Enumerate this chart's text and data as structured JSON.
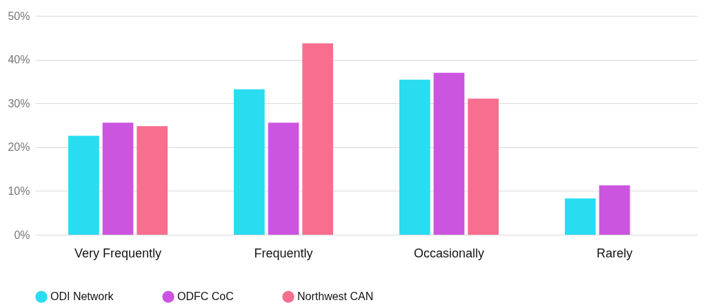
{
  "chart_data": {
    "type": "bar",
    "categories": [
      "Very Frequently",
      "Frequently",
      "Occasionally",
      "Rarely"
    ],
    "series": [
      {
        "name": "ODI Network",
        "color": "#2adcf0",
        "values": [
          22.6,
          33.2,
          35.4,
          8.3
        ]
      },
      {
        "name": "ODFC CoC",
        "color": "#cc55e0",
        "values": [
          25.6,
          25.6,
          37.0,
          11.3
        ]
      },
      {
        "name": "Northwest CAN",
        "color": "#f76e8f",
        "values": [
          24.8,
          43.7,
          31.1,
          null
        ]
      }
    ],
    "ylim": [
      0,
      50
    ],
    "yticks": [
      {
        "value": 0,
        "label": "0%"
      },
      {
        "value": 10,
        "label": "10%"
      },
      {
        "value": 20,
        "label": "20%"
      },
      {
        "value": 30,
        "label": "30%"
      },
      {
        "value": 40,
        "label": "40%"
      },
      {
        "value": 50,
        "label": "50%"
      }
    ],
    "grid": "y",
    "legend": "bottom"
  }
}
